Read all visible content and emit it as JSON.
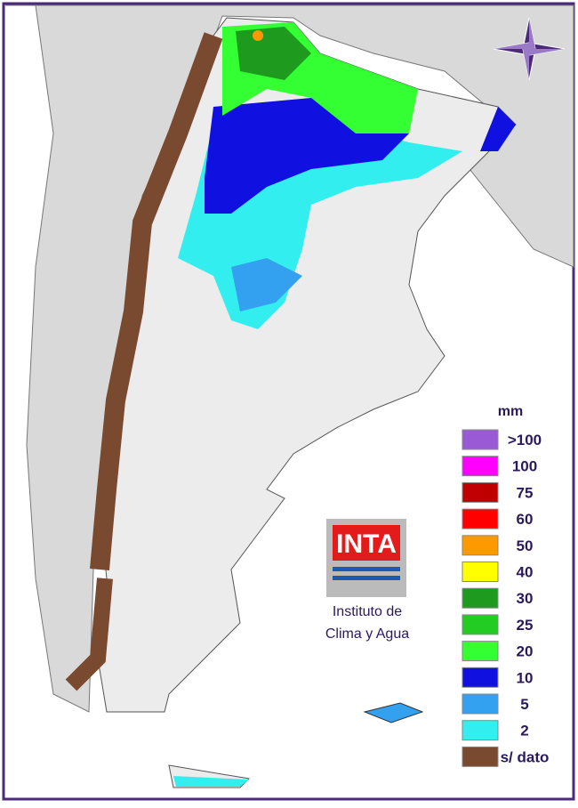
{
  "legend": {
    "unit": "mm",
    "items": [
      {
        "label": ">100",
        "color": "#9a5ad6"
      },
      {
        "label": "100",
        "color": "#ff00ff"
      },
      {
        "label": "75",
        "color": "#c00000"
      },
      {
        "label": "60",
        "color": "#ff0000"
      },
      {
        "label": "50",
        "color": "#ff9900"
      },
      {
        "label": "40",
        "color": "#ffff00"
      },
      {
        "label": "30",
        "color": "#1e9b1e"
      },
      {
        "label": "25",
        "color": "#22cc22"
      },
      {
        "label": "20",
        "color": "#33ff33"
      },
      {
        "label": "10",
        "color": "#1010e0"
      },
      {
        "label": "5",
        "color": "#33a0f0"
      },
      {
        "label": "2",
        "color": "#33eeee"
      },
      {
        "label": "s/ dato",
        "color": "#7a4a30"
      }
    ]
  },
  "logo": {
    "name": "INTA",
    "caption": [
      "Instituto de",
      "Clima y Agua"
    ]
  }
}
